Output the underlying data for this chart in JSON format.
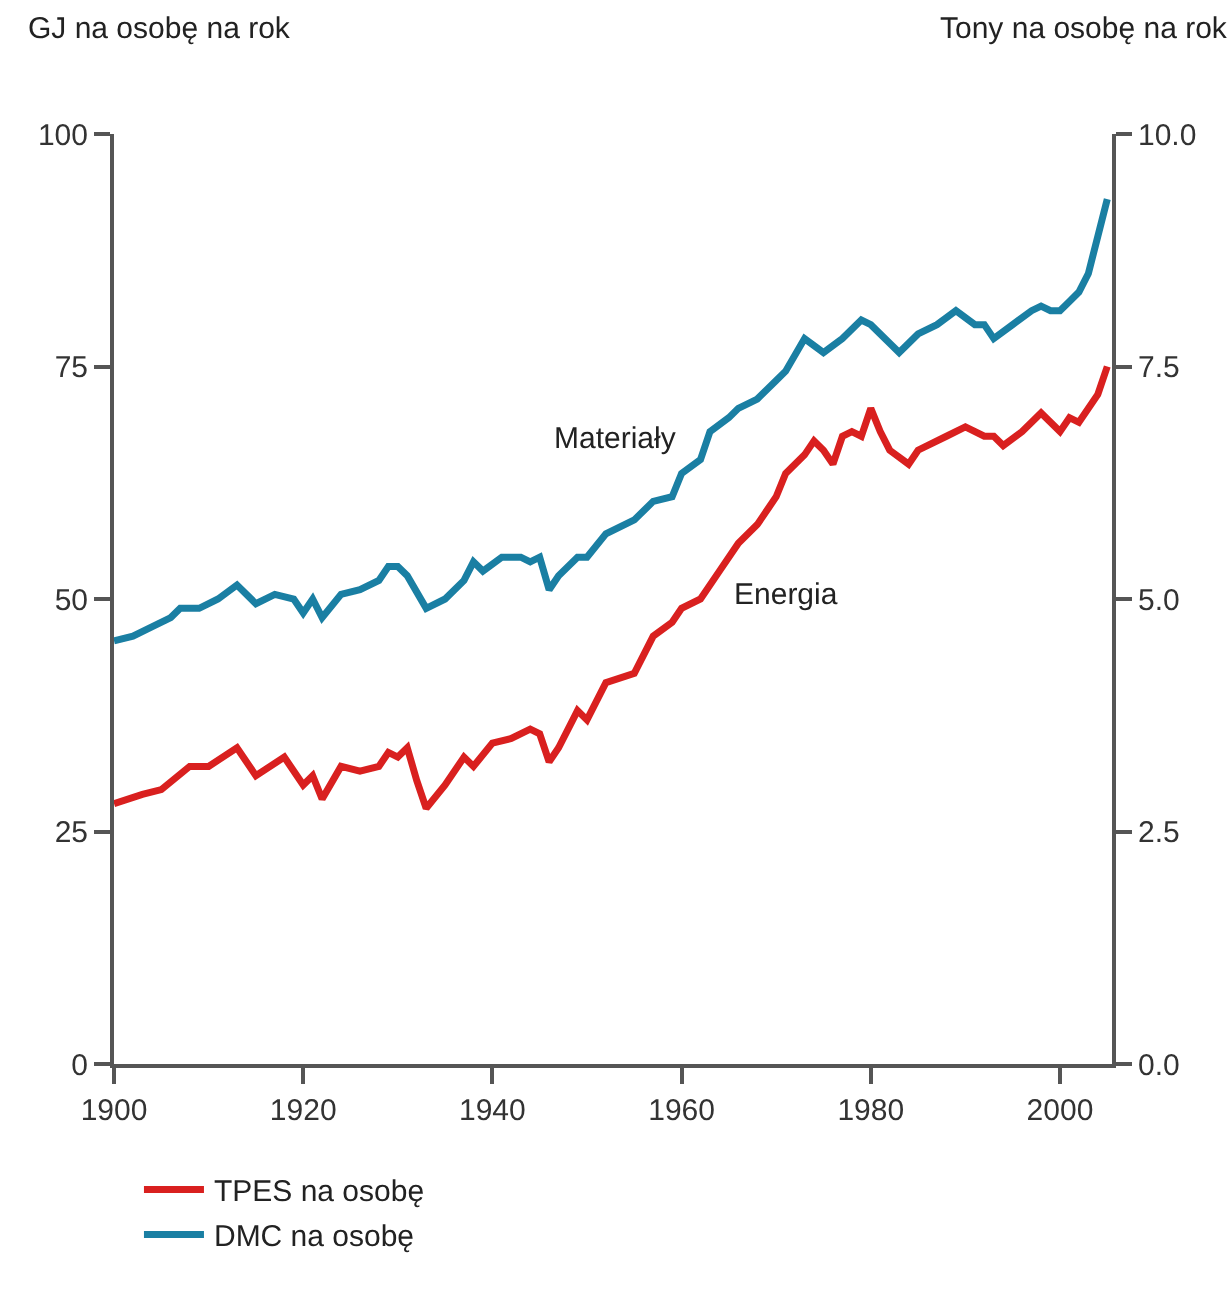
{
  "chart_data": {
    "type": "line",
    "ylabel": "GJ na osobę na rok",
    "y2label": "Tony na osobę na rok",
    "xlim": [
      1900,
      2005.5
    ],
    "xticks": [
      1900,
      1920,
      1940,
      1960,
      1980,
      2000
    ],
    "ylim": [
      0,
      100
    ],
    "yticks": [
      0,
      25,
      50,
      75,
      100
    ],
    "y2lim": [
      0,
      10
    ],
    "y2ticks": [
      {
        "value": 0,
        "label": "0.0"
      },
      {
        "value": 2.5,
        "label": "2.5"
      },
      {
        "value": 5,
        "label": "5.0"
      },
      {
        "value": 7.5,
        "label": "7.5"
      },
      {
        "value": 10,
        "label": "10.0"
      }
    ],
    "legend": "bottom left",
    "marker": "none",
    "line_style": "solid",
    "annotations": [
      "Materiały",
      "Energia"
    ],
    "series": [
      {
        "name": "TPES na osobę",
        "color": "#d9201f",
        "x": [
          1900,
          1903,
          1905,
          1908,
          1910,
          1913,
          1915,
          1918,
          1920,
          1921,
          1922,
          1924,
          1926,
          1928,
          1929,
          1930,
          1931,
          1932,
          1933,
          1935,
          1937,
          1938,
          1940,
          1942,
          1944,
          1945,
          1946,
          1947,
          1949,
          1950,
          1952,
          1955,
          1957,
          1959,
          1960,
          1962,
          1964,
          1966,
          1968,
          1970,
          1971,
          1973,
          1974,
          1975,
          1976,
          1977,
          1978,
          1979,
          1980,
          1981,
          1982,
          1984,
          1985,
          1988,
          1990,
          1992,
          1993,
          1994,
          1996,
          1998,
          2000,
          2001,
          2002,
          2004,
          2005
        ],
        "values": [
          28,
          29,
          29.5,
          32,
          32,
          34,
          31,
          33,
          30,
          31,
          28.5,
          32,
          31.5,
          32,
          33.5,
          33,
          34,
          30.5,
          27.5,
          30,
          33,
          32,
          34.5,
          35,
          36,
          35.5,
          32.5,
          34,
          38,
          37,
          41,
          42,
          46,
          47.5,
          49,
          50,
          53,
          56,
          58,
          61,
          63.5,
          65.5,
          67,
          66,
          64.5,
          67.5,
          68,
          67.5,
          70.5,
          68,
          66,
          64.5,
          66,
          67.5,
          68.5,
          67.5,
          67.5,
          66.5,
          68,
          70,
          68,
          69.5,
          69,
          72,
          75
        ]
      },
      {
        "name": "DMC na osobę",
        "color": "#1a7fa3",
        "axis": "y2",
        "x": [
          1900,
          1902,
          1904,
          1906,
          1907,
          1909,
          1911,
          1913,
          1915,
          1917,
          1919,
          1920,
          1921,
          1922,
          1924,
          1926,
          1928,
          1929,
          1930,
          1931,
          1933,
          1935,
          1937,
          1938,
          1939,
          1941,
          1943,
          1944,
          1945,
          1946,
          1947,
          1949,
          1950,
          1952,
          1955,
          1957,
          1959,
          1960,
          1962,
          1963,
          1965,
          1966,
          1968,
          1970,
          1971,
          1973,
          1975,
          1977,
          1979,
          1980,
          1982,
          1983,
          1985,
          1987,
          1989,
          1991,
          1992,
          1993,
          1995,
          1997,
          1998,
          1999,
          2000,
          2001,
          2002,
          2003,
          2004,
          2005
        ],
        "values": [
          4.55,
          4.6,
          4.7,
          4.8,
          4.9,
          4.9,
          5.0,
          5.15,
          4.95,
          5.05,
          5.0,
          4.85,
          5.0,
          4.8,
          5.05,
          5.1,
          5.2,
          5.35,
          5.35,
          5.25,
          4.9,
          5.0,
          5.2,
          5.4,
          5.3,
          5.45,
          5.45,
          5.4,
          5.45,
          5.1,
          5.25,
          5.45,
          5.45,
          5.7,
          5.85,
          6.05,
          6.1,
          6.35,
          6.5,
          6.8,
          6.95,
          7.05,
          7.15,
          7.35,
          7.45,
          7.8,
          7.65,
          7.8,
          8.0,
          7.95,
          7.75,
          7.65,
          7.85,
          7.95,
          8.1,
          7.95,
          7.95,
          7.8,
          7.95,
          8.1,
          8.15,
          8.1,
          8.1,
          8.2,
          8.3,
          8.5,
          8.9,
          9.3
        ]
      }
    ]
  }
}
